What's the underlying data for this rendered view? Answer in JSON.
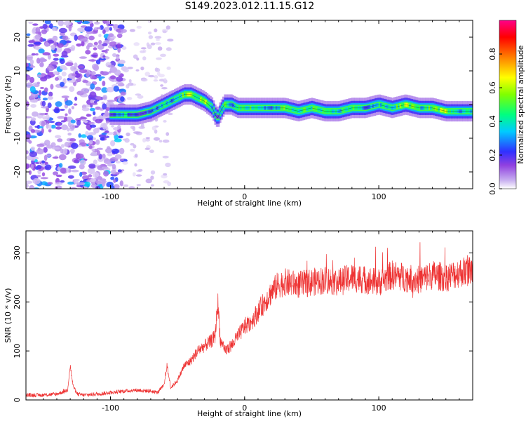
{
  "title": "S149.2023.012.11.15.G12",
  "chart_data": [
    {
      "type": "heatmap",
      "xlabel": "Height of straight line (km)",
      "ylabel": "Frequency (Hz)",
      "xlim": [
        -163,
        170
      ],
      "ylim": [
        -25,
        25
      ],
      "x_ticks": [
        -100,
        0,
        100
      ],
      "y_ticks": [
        20,
        10,
        0,
        -10,
        -20
      ],
      "colorbar": {
        "label": "Normalized spectral amplitude",
        "range": [
          0,
          1
        ],
        "ticks": [
          "0.0",
          "0.2",
          "0.4",
          "0.6",
          "0.8"
        ],
        "colors": [
          "#ffffff",
          "#b8a0f0",
          "#8a2be2",
          "#3030ff",
          "#00ccff",
          "#00ff80",
          "#80ff00",
          "#ffff00",
          "#ff8000",
          "#ff0000",
          "#ff0088"
        ]
      },
      "ridge": {
        "description_points_x": [
          -100,
          -90,
          -80,
          -70,
          -65,
          -60,
          -55,
          -50,
          -45,
          -40,
          -35,
          -30,
          -27,
          -24,
          -22,
          -20,
          -18,
          -15,
          -10,
          -5,
          0,
          10,
          20,
          30,
          40,
          50,
          60,
          70,
          80,
          90,
          100,
          110,
          120,
          130,
          140,
          150,
          160,
          170
        ],
        "frequency_hz": [
          -3,
          -3,
          -3,
          -2,
          -1,
          0,
          1,
          2,
          3,
          3,
          2,
          1,
          0,
          -1,
          -3,
          -4,
          -2,
          0,
          0,
          -1,
          -1,
          -1,
          -1,
          -1,
          -2,
          -1,
          -2,
          -2,
          -1,
          -1,
          0,
          -1,
          0,
          -1,
          -1,
          -2,
          -2,
          -2
        ],
        "amplitude": [
          0.4,
          0.6,
          0.4,
          0.5,
          0.5,
          0.6,
          0.5,
          0.6,
          0.7,
          0.8,
          0.7,
          0.8,
          0.6,
          0.5,
          0.5,
          0.4,
          0.6,
          0.7,
          0.5,
          0.6,
          0.7,
          0.6,
          0.5,
          0.7,
          0.6,
          0.7,
          0.6,
          0.6,
          0.7,
          0.5,
          0.6,
          0.6,
          0.8,
          0.6,
          0.7,
          0.8,
          0.6,
          0.6
        ]
      },
      "noise_region_x": [
        -163,
        -90
      ]
    },
    {
      "type": "line",
      "xlabel": "Height of straight line (km)",
      "ylabel": "SNR (10 * v/v)",
      "xlim": [
        -163,
        170
      ],
      "ylim": [
        0,
        345
      ],
      "x_ticks": [
        -100,
        0,
        100
      ],
      "y_ticks": [
        0,
        100,
        200,
        300
      ],
      "series": [
        {
          "color": "#ee3333",
          "x": [
            -163,
            -150,
            -140,
            -132,
            -130,
            -128,
            -125,
            -120,
            -110,
            -100,
            -90,
            -80,
            -70,
            -65,
            -60,
            -58,
            -55,
            -50,
            -45,
            -40,
            -35,
            -30,
            -25,
            -22,
            -20,
            -18,
            -15,
            -10,
            -5,
            0,
            5,
            10,
            15,
            20,
            25,
            30,
            40,
            50,
            60,
            70,
            80,
            90,
            100,
            110,
            120,
            130,
            140,
            150,
            160,
            170
          ],
          "y": [
            10,
            10,
            12,
            20,
            70,
            30,
            12,
            10,
            12,
            15,
            18,
            20,
            18,
            15,
            30,
            70,
            25,
            40,
            70,
            80,
            100,
            110,
            120,
            130,
            200,
            120,
            100,
            110,
            130,
            150,
            160,
            180,
            200,
            220,
            235,
            240,
            235,
            240,
            245,
            240,
            250,
            245,
            240,
            255,
            250,
            245,
            255,
            250,
            260,
            265
          ]
        }
      ]
    }
  ]
}
